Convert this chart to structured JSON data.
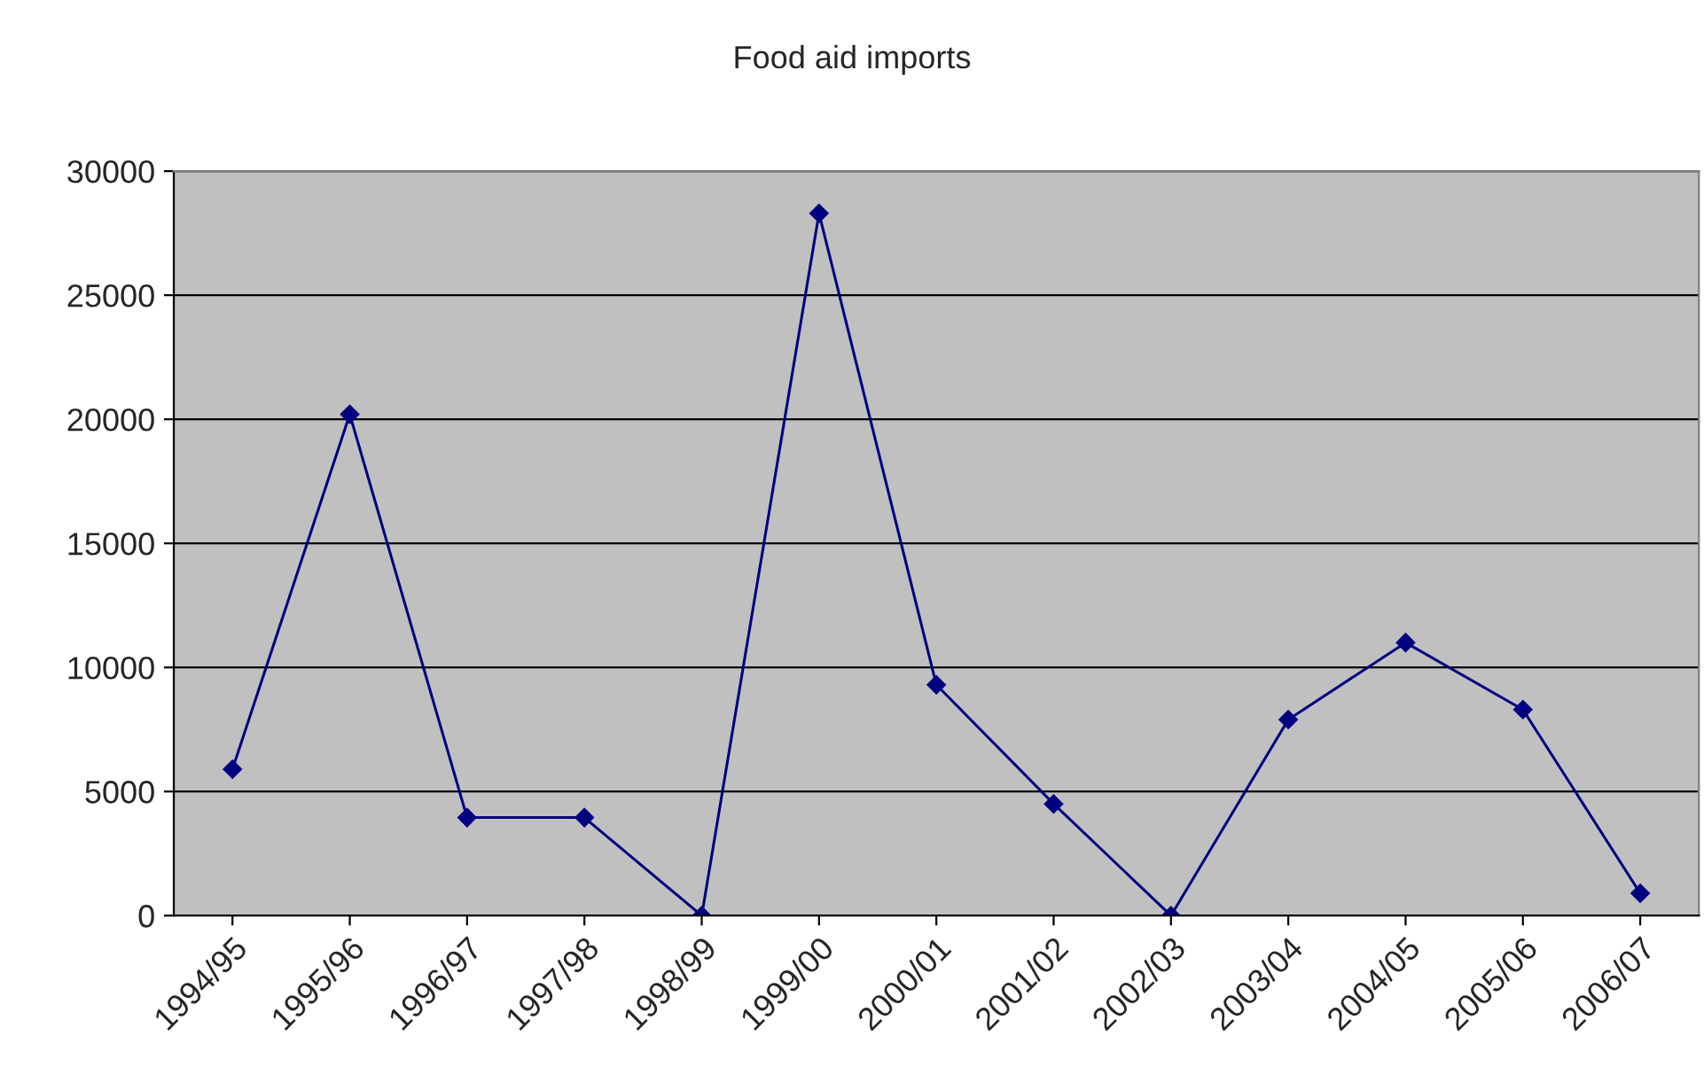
{
  "chart_data": {
    "type": "line",
    "title": "Food aid imports",
    "categories": [
      "1994/95",
      "1995/96",
      "1996/97",
      "1997/98",
      "1998/99",
      "1999/00",
      "2000/01",
      "2001/02",
      "2002/03",
      "2003/04",
      "2004/05",
      "2005/06",
      "2006/07"
    ],
    "series": [
      {
        "color": "#000080",
        "values": [
          5900,
          20200,
          3950,
          3950,
          0,
          28300,
          9300,
          4500,
          0,
          7900,
          11000,
          8300,
          900
        ]
      }
    ],
    "ylim": [
      0,
      30000
    ],
    "yticks": [
      0,
      5000,
      10000,
      15000,
      20000,
      25000,
      30000
    ],
    "grid": "y",
    "marker": "diamond",
    "line_style": "solid"
  }
}
